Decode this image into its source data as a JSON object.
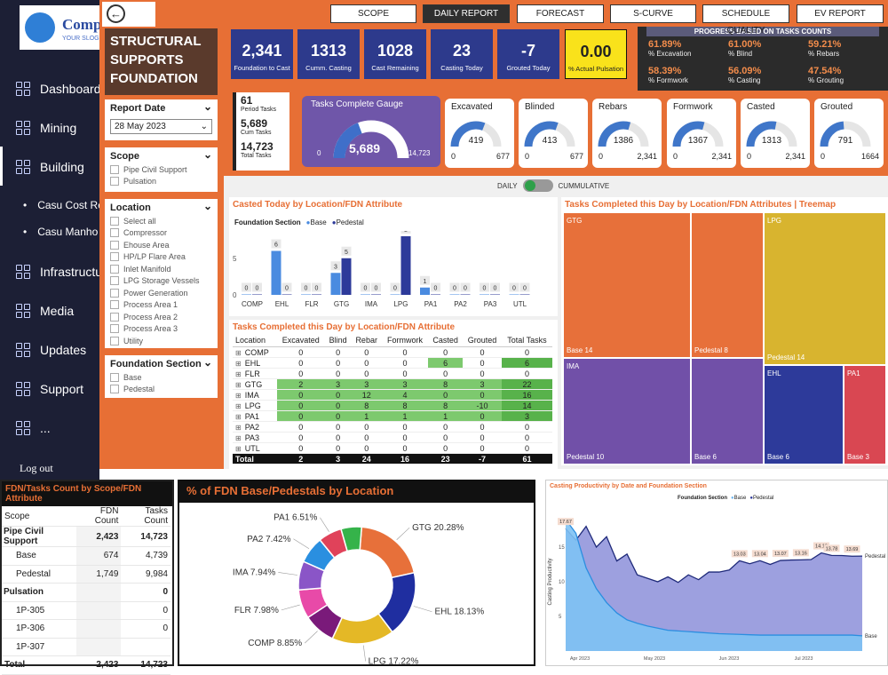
{
  "sidebar": {
    "logo_text": "Comp",
    "logo_sub": "YOUR SLOG",
    "items": [
      "Dashboard",
      "Mining",
      "Building",
      "Infrastructu",
      "Media",
      "Updates",
      "Support",
      "..."
    ],
    "sub_items": [
      "Casu Cost Re",
      "Casu Manho"
    ],
    "logout": "Log out"
  },
  "report": {
    "title_l1": "STRUCTURAL",
    "title_l2": "SUPPORTS",
    "title_l3": "FOUNDATION",
    "tabs": [
      "SCOPE",
      "DAILY REPORT",
      "FORECAST",
      "S-CURVE",
      "SCHEDULE QUALITY",
      "EV REPORT"
    ],
    "report_date_label": "Report Date",
    "report_date": "28 May 2023",
    "scope_label": "Scope",
    "scope_items": [
      "Pipe Civil Support",
      "Pulsation"
    ],
    "location_label": "Location",
    "location_items": [
      "Select all",
      "Compressor",
      "Ehouse Area",
      "HP/LP Flare Area",
      "Inlet Manifold",
      "LPG Storage Vessels",
      "Power Generation",
      "Process Area 1",
      "Process Area 2",
      "Process Area 3",
      "Utility"
    ],
    "fdn_section_label": "Foundation Section",
    "fdn_section_items": [
      "Base",
      "Pedestal"
    ],
    "kpis": [
      {
        "v": "2,341",
        "l": "Foundation to Cast"
      },
      {
        "v": "1313",
        "l": "Cumm. Casting"
      },
      {
        "v": "1028",
        "l": "Cast Remaining"
      },
      {
        "v": "23",
        "l": "Casting Today"
      },
      {
        "v": "-7",
        "l": "Grouted Today"
      },
      {
        "v": "0.00",
        "l": "% Actual Pulsation"
      }
    ],
    "progress_title": "PROGRESS BASED ON TASKS COUNTS",
    "progress": [
      {
        "v": "61.89%",
        "l": "% Excavation"
      },
      {
        "v": "61.00%",
        "l": "% Blind"
      },
      {
        "v": "59.21%",
        "l": "% Rebars"
      },
      {
        "v": "58.39%",
        "l": "% Formwork"
      },
      {
        "v": "56.09%",
        "l": "% Casting"
      },
      {
        "v": "47.54%",
        "l": "% Grouting"
      }
    ],
    "period": {
      "v1": "61",
      "l1": "Period Tasks",
      "v2": "5,689",
      "l2": "Cum Tasks",
      "v3": "14,723",
      "l3": "Total Tasks"
    },
    "gauge_total": {
      "title": "Tasks Complete Gauge",
      "value": "5,689",
      "min": "0",
      "max": "14,723",
      "fill": 0.386
    },
    "gauges": [
      {
        "t": "Excavated",
        "v": "419",
        "min": "0",
        "max": "677",
        "fill": 0.619
      },
      {
        "t": "Blinded",
        "v": "413",
        "min": "0",
        "max": "677",
        "fill": 0.61
      },
      {
        "t": "Rebars",
        "v": "1386",
        "min": "0",
        "max": "2,341",
        "fill": 0.592
      },
      {
        "t": "Formwork",
        "v": "1367",
        "min": "0",
        "max": "2,341",
        "fill": 0.584
      },
      {
        "t": "Casted",
        "v": "1313",
        "min": "0",
        "max": "2,341",
        "fill": 0.561
      },
      {
        "t": "Grouted",
        "v": "791",
        "min": "0",
        "max": "1664",
        "fill": 0.475
      }
    ],
    "toggle_left": "DAILY",
    "toggle_right": "CUMMULATIVE",
    "bar_title": "Casted Today by Location/FDN Attribute",
    "bar_legend_title": "Foundation Section",
    "bar_legend": [
      "Base",
      "Pedestal"
    ],
    "table_title": "Tasks Completed this Day by Location/FDN Attribute",
    "table_headers": [
      "Location",
      "Excavated",
      "Blind",
      "Rebar",
      "Formwork",
      "Casted",
      "Grouted",
      "Total Tasks"
    ],
    "table_rows": [
      [
        "COMP",
        "0",
        "0",
        "0",
        "0",
        "0",
        "0",
        "0"
      ],
      [
        "EHL",
        "0",
        "0",
        "0",
        "0",
        "6",
        "0",
        "6"
      ],
      [
        "FLR",
        "0",
        "0",
        "0",
        "0",
        "0",
        "0",
        "0"
      ],
      [
        "GTG",
        "2",
        "3",
        "3",
        "3",
        "8",
        "3",
        "22"
      ],
      [
        "IMA",
        "0",
        "0",
        "12",
        "4",
        "0",
        "0",
        "16"
      ],
      [
        "LPG",
        "0",
        "0",
        "8",
        "8",
        "8",
        "-10",
        "14"
      ],
      [
        "PA1",
        "0",
        "0",
        "1",
        "1",
        "1",
        "0",
        "3"
      ],
      [
        "PA2",
        "0",
        "0",
        "0",
        "0",
        "0",
        "0",
        "0"
      ],
      [
        "PA3",
        "0",
        "0",
        "0",
        "0",
        "0",
        "0",
        "0"
      ],
      [
        "UTL",
        "0",
        "0",
        "0",
        "0",
        "0",
        "0",
        "0"
      ]
    ],
    "table_total": [
      "Total",
      "2",
      "3",
      "24",
      "16",
      "23",
      "-7",
      "61"
    ],
    "treemap_title": "Tasks Completed this Day by Location/FDN Attributes | Treemap",
    "treemap": [
      {
        "name": "GTG",
        "color": "#e7703a"
      },
      {
        "name": "LPG",
        "color": "#d8b42f"
      },
      {
        "name": "IMA",
        "color": "#7150a8"
      },
      {
        "name": "EHL",
        "color": "#2d3a9a"
      },
      {
        "name": "PA1",
        "color": "#d94752"
      }
    ],
    "treemap_labels": [
      "Base 14",
      "Pedestal 8",
      "Pedestal 14",
      "Pedestal 10",
      "Base 6",
      "Base 6",
      "Base 3"
    ]
  },
  "fdn_count": {
    "title": "FDN/Tasks Count by Scope/FDN Attribute",
    "headers": [
      "Scope",
      "FDN Count",
      "Tasks Count"
    ],
    "rows": [
      [
        "Pipe Civil Support",
        "2,423",
        "14,723"
      ],
      [
        "Base",
        "674",
        "4,739"
      ],
      [
        "Pedestal",
        "1,749",
        "9,984"
      ],
      [
        "Pulsation",
        "",
        "0"
      ],
      [
        "1P-305",
        "",
        "0"
      ],
      [
        "1P-306",
        "",
        "0"
      ],
      [
        "1P-307",
        "",
        ""
      ]
    ],
    "total": [
      "Total",
      "2,423",
      "14,723"
    ]
  },
  "chart_data": [
    {
      "type": "bar",
      "title": "Casted Today by Location/FDN Attribute",
      "categories": [
        "COMP",
        "EHL",
        "FLR",
        "GTG",
        "IMA",
        "LPG",
        "PA1",
        "PA2",
        "PA3",
        "UTL"
      ],
      "series": [
        {
          "name": "Base",
          "values": [
            0,
            6,
            0,
            3,
            0,
            0,
            1,
            0,
            0,
            0
          ],
          "color": "#4a8be0"
        },
        {
          "name": "Pedestal",
          "values": [
            0,
            0,
            0,
            5,
            0,
            8,
            0,
            0,
            0,
            0
          ],
          "color": "#2d3a9a"
        }
      ],
      "yticks": [
        "0",
        "5"
      ],
      "ylim": [
        0,
        8
      ]
    },
    {
      "type": "pie",
      "title": "% of FDN Base/Pedestals by Location",
      "slices": [
        {
          "label": "GTG",
          "value": 20.28,
          "text": "GTG 20.28%",
          "color": "#e7703a"
        },
        {
          "label": "EHL",
          "value": 18.13,
          "text": "EHL 18.13%",
          "color": "#1f2ea0"
        },
        {
          "label": "LPG",
          "value": 17.22,
          "text": "LPG 17.22%",
          "color": "#e4b826"
        },
        {
          "label": "COMP",
          "value": 8.85,
          "text": "COMP 8.85%",
          "color": "#7a1a7a"
        },
        {
          "label": "FLR",
          "value": 7.98,
          "text": "FLR 7.98%",
          "color": "#e84aa8"
        },
        {
          "label": "IMA",
          "value": 7.94,
          "text": "IMA 7.94%",
          "color": "#8a55c7"
        },
        {
          "label": "PA2",
          "value": 7.42,
          "text": "PA2 7.42%",
          "color": "#2a8fe0"
        },
        {
          "label": "PA1",
          "value": 6.51,
          "text": "PA1 6.51%",
          "color": "#e0425a"
        },
        {
          "label": "Other",
          "value": 5.67,
          "text": "",
          "color": "#35b34a"
        }
      ]
    },
    {
      "type": "area",
      "title": "Casting Productivity by Date and Foundation Section",
      "legend_title": "Foundation Section",
      "ylabel": "Casting Productivity",
      "xticks": [
        "Apr 2023",
        "May 2023",
        "Jun 2023",
        "Jul 2023"
      ],
      "yticks": [
        "5",
        "10",
        "15"
      ],
      "ylim": [
        0,
        20
      ],
      "series": [
        {
          "name": "Base",
          "values": [
            19,
            17,
            12,
            9,
            7,
            5.5,
            4.5,
            4,
            3.6,
            3.3,
            3,
            2.9,
            2.8,
            2.7,
            2.6,
            2.5,
            2.45,
            2.4,
            2.35,
            2.3,
            2.3,
            2.3,
            2.3,
            2.3,
            2.3,
            2.3,
            2.3,
            2.3,
            2.3,
            2.2
          ]
        },
        {
          "name": "Pedestal",
          "values": [
            17.67,
            16,
            18,
            15,
            16.5,
            13,
            14,
            11,
            10.5,
            10,
            10.7,
            9.9,
            11,
            10.3,
            11.4,
            11.4,
            11.7,
            13.03,
            12.6,
            13.04,
            12.5,
            13.07,
            13.13,
            13.16,
            13.2,
            14.16,
            13.8,
            13.78,
            13.69,
            13.7
          ]
        }
      ],
      "point_labels": [
        "17.67",
        "13.03",
        "13.04",
        "13.07",
        "13.16",
        "14.16",
        "13.78",
        "13.69"
      ],
      "end_labels": [
        "Pedestal",
        "Base"
      ]
    }
  ]
}
